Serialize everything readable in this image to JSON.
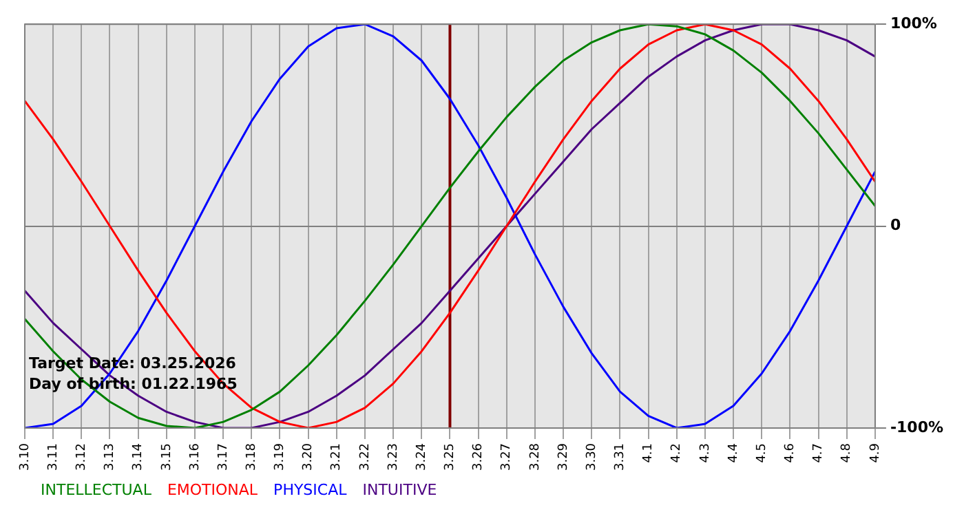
{
  "chart_data": {
    "type": "line",
    "categories": [
      "3.10",
      "3.11",
      "3.12",
      "3.13",
      "3.14",
      "3.15",
      "3.16",
      "3.17",
      "3.18",
      "3.19",
      "3.20",
      "3.21",
      "3.22",
      "3.23",
      "3.24",
      "3.25",
      "3.26",
      "3.27",
      "3.28",
      "3.29",
      "3.30",
      "3.31",
      "4.1",
      "4.2",
      "4.3",
      "4.4",
      "4.5",
      "4.6",
      "4.7",
      "4.8",
      "4.9"
    ],
    "series": [
      {
        "name": "INTELLECTUAL",
        "color": "#008000",
        "values": [
          -46,
          -62,
          -76,
          -87,
          -95,
          -99,
          -100,
          -97,
          -91,
          -82,
          -69,
          -54,
          -37,
          -19,
          0,
          19,
          37,
          54,
          69,
          82,
          91,
          97,
          100,
          99,
          95,
          87,
          76,
          62,
          46,
          28,
          10
        ]
      },
      {
        "name": "EMOTIONAL",
        "color": "#ff0000",
        "values": [
          62,
          43,
          22,
          0,
          -22,
          -43,
          -62,
          -78,
          -90,
          -97,
          -100,
          -97,
          -90,
          -78,
          -62,
          -43,
          -22,
          0,
          22,
          43,
          62,
          78,
          90,
          97,
          100,
          97,
          90,
          78,
          62,
          43,
          22
        ]
      },
      {
        "name": "PHYSICAL",
        "color": "#0000ff",
        "values": [
          -100,
          -98,
          -89,
          -73,
          -52,
          -27,
          0,
          27,
          52,
          73,
          89,
          98,
          100,
          94,
          82,
          63,
          40,
          14,
          -14,
          -40,
          -63,
          -82,
          -94,
          -100,
          -98,
          -89,
          -73,
          -52,
          -27,
          0,
          27
        ]
      },
      {
        "name": "INTUITIVE",
        "color": "#4b0082",
        "values": [
          -32,
          -48,
          -61,
          -74,
          -84,
          -92,
          -97,
          -100,
          -100,
          -97,
          -92,
          -84,
          -74,
          -61,
          -48,
          -32,
          -16,
          0,
          16,
          32,
          48,
          61,
          74,
          84,
          92,
          97,
          100,
          100,
          97,
          92,
          84
        ]
      }
    ],
    "ylim": [
      -100,
      100
    ],
    "yticks": [
      {
        "value": -100,
        "label": "-100%"
      },
      0,
      {
        "value": 100,
        "label": "100%"
      }
    ],
    "ref_lines": [
      {
        "axis": "x",
        "value": "3.25",
        "color": "#800000"
      }
    ],
    "annotations": [
      "Target Date: 03.25.2026",
      "Day of birth: 01.22.1965"
    ],
    "grid": true,
    "legend": "bottom",
    "marker": "none",
    "line_style": "solid"
  }
}
